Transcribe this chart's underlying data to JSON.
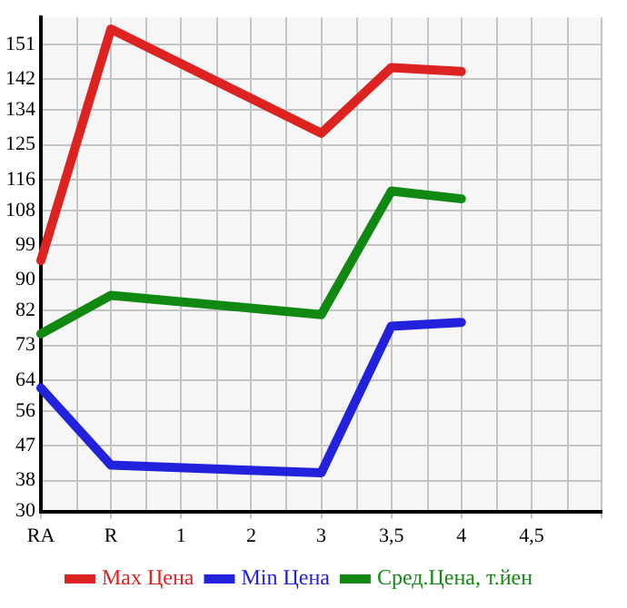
{
  "chart_data": {
    "type": "line",
    "categories": [
      "RA",
      "R",
      "1",
      "2",
      "3",
      "3,5",
      "4",
      "4,5",
      null
    ],
    "series": [
      {
        "name": "Max Цена",
        "color": "#dd2222",
        "values": [
          95,
          155,
          null,
          null,
          128,
          145,
          144,
          null,
          null
        ]
      },
      {
        "name": "Min Цена",
        "color": "#2222dd",
        "values": [
          62,
          42,
          null,
          null,
          40,
          78,
          79,
          null,
          null
        ]
      },
      {
        "name": "Сред.Цена, т.йен",
        "color": "#118811",
        "values": [
          76,
          86,
          null,
          null,
          81,
          113,
          111,
          null,
          null
        ]
      }
    ],
    "ylim": [
      30,
      158
    ],
    "yticks": [
      30,
      38,
      47,
      56,
      64,
      73,
      82,
      90,
      99,
      108,
      116,
      125,
      134,
      142,
      151
    ],
    "grid": true,
    "legend": "bottom",
    "marker": "none",
    "line_style": "solid"
  }
}
